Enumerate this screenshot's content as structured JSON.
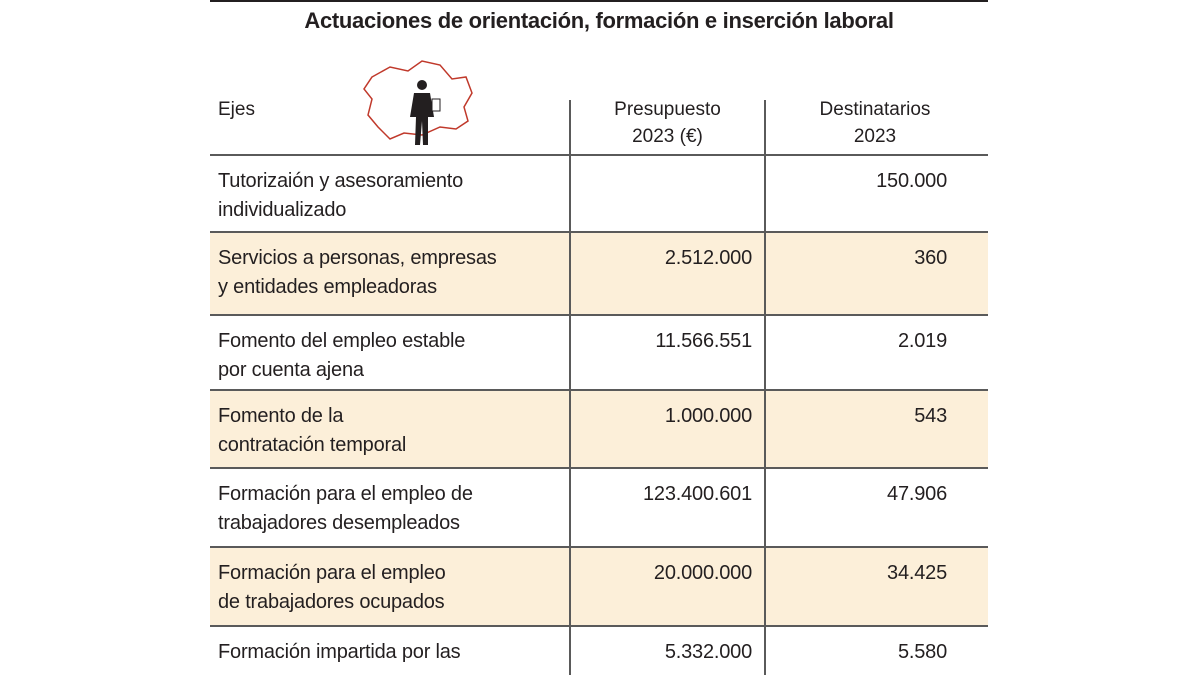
{
  "title": "Actuaciones de orientación, formación e inserción laboral",
  "table": {
    "headers": [
      [
        "Ejes"
      ],
      [
        "Presupuesto",
        "2023 (€)"
      ],
      [
        "Destinatarios",
        "2023"
      ]
    ],
    "rows": [
      [
        [
          "Tutorizaión y asesoramiento",
          "individualizado"
        ],
        "",
        "150.000"
      ],
      [
        [
          "Servicios a personas, empresas",
          "y entidades empleadoras"
        ],
        "2.512.000",
        "360"
      ],
      [
        [
          "Fomento del empleo estable",
          "por cuenta ajena"
        ],
        "11.566.551",
        "2.019"
      ],
      [
        [
          "Fomento de la",
          "contratación temporal"
        ],
        "1.000.000",
        "543"
      ],
      [
        [
          "Formación para el empleo de",
          "trabajadores desempleados"
        ],
        "123.400.601",
        "47.906"
      ],
      [
        [
          "Formación para el empleo",
          "de trabajadores ocupados"
        ],
        "20.000.000",
        "34.425"
      ],
      [
        [
          "Formación impartida por las"
        ],
        "5.332.000",
        "5.580"
      ]
    ]
  }
}
